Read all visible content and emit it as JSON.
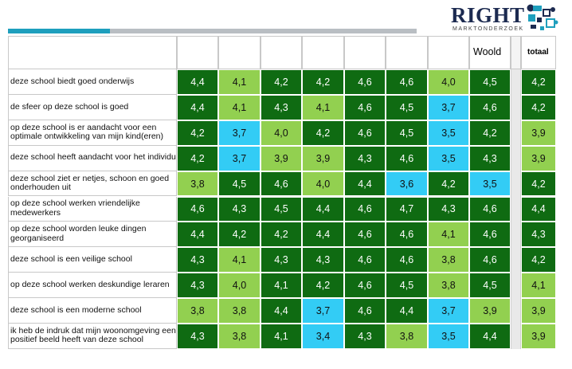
{
  "brand": {
    "name": "RIGHT",
    "subtitle": "MARKTONDERZOEK",
    "colors": {
      "navy": "#1c2a50",
      "teal": "#1e9fbd",
      "grey": "#b9bec3"
    }
  },
  "chart_data": {
    "type": "table",
    "columns": [
      "",
      "",
      "",
      "",
      "",
      "",
      "",
      "Woold",
      "totaal"
    ],
    "rows": [
      {
        "label": "deze school biedt goed onderwijs",
        "values": [
          4.4,
          4.1,
          4.2,
          4.2,
          4.6,
          4.6,
          4.0,
          4.5,
          4.2
        ]
      },
      {
        "label": "de sfeer op deze school is goed",
        "values": [
          4.4,
          4.1,
          4.3,
          4.1,
          4.6,
          4.5,
          3.7,
          4.6,
          4.2
        ]
      },
      {
        "label": "op deze school is er aandacht voor een optimale ontwikkeling van mijn kind(eren)",
        "values": [
          4.2,
          3.7,
          4.0,
          4.2,
          4.6,
          4.5,
          3.5,
          4.2,
          3.9
        ]
      },
      {
        "label": "deze school heeft aandacht voor het individu",
        "values": [
          4.2,
          3.7,
          3.9,
          3.9,
          4.3,
          4.6,
          3.5,
          4.3,
          3.9
        ]
      },
      {
        "label": "deze school ziet er netjes, schoon en goed onderhouden uit",
        "values": [
          3.8,
          4.5,
          4.6,
          4.0,
          4.4,
          3.6,
          4.2,
          3.5,
          4.2
        ]
      },
      {
        "label": "op deze school werken vriendelijke medewerkers",
        "values": [
          4.6,
          4.3,
          4.5,
          4.4,
          4.6,
          4.7,
          4.3,
          4.6,
          4.4
        ]
      },
      {
        "label": "op deze school worden leuke dingen georganiseerd",
        "values": [
          4.4,
          4.2,
          4.2,
          4.4,
          4.6,
          4.6,
          4.1,
          4.6,
          4.3
        ]
      },
      {
        "label": "deze school is een veilige school",
        "values": [
          4.3,
          4.1,
          4.3,
          4.3,
          4.6,
          4.6,
          3.8,
          4.6,
          4.2
        ]
      },
      {
        "label": "op deze school werken deskundige leraren",
        "values": [
          4.3,
          4.0,
          4.1,
          4.2,
          4.6,
          4.5,
          3.8,
          4.5,
          4.1
        ]
      },
      {
        "label": "deze school is een moderne school",
        "values": [
          3.8,
          3.8,
          4.4,
          3.7,
          4.6,
          4.4,
          3.7,
          3.9,
          3.9
        ]
      },
      {
        "label": "ik heb de indruk dat mijn woonomgeving een positief beeld heeft van deze school",
        "values": [
          4.3,
          3.8,
          4.1,
          3.4,
          4.3,
          3.8,
          3.5,
          4.4,
          3.9
        ]
      }
    ],
    "cell_colors": [
      [
        "dark",
        "light",
        "dark",
        "dark",
        "dark",
        "dark",
        "light",
        "dark",
        "dark"
      ],
      [
        "dark",
        "light",
        "dark",
        "light",
        "dark",
        "dark",
        "blue",
        "dark",
        "dark"
      ],
      [
        "dark",
        "blue",
        "light",
        "dark",
        "dark",
        "dark",
        "blue",
        "dark",
        "light"
      ],
      [
        "dark",
        "blue",
        "light",
        "light",
        "dark",
        "dark",
        "blue",
        "dark",
        "light"
      ],
      [
        "light",
        "dark",
        "dark",
        "light",
        "dark",
        "blue",
        "dark",
        "blue",
        "dark"
      ],
      [
        "dark",
        "dark",
        "dark",
        "dark",
        "dark",
        "dark",
        "dark",
        "dark",
        "dark"
      ],
      [
        "dark",
        "dark",
        "dark",
        "dark",
        "dark",
        "dark",
        "light",
        "dark",
        "dark"
      ],
      [
        "dark",
        "light",
        "dark",
        "dark",
        "dark",
        "dark",
        "light",
        "dark",
        "dark"
      ],
      [
        "dark",
        "light",
        "dark",
        "dark",
        "dark",
        "dark",
        "light",
        "dark",
        "light"
      ],
      [
        "light",
        "light",
        "dark",
        "blue",
        "dark",
        "dark",
        "blue",
        "light",
        "light"
      ],
      [
        "dark",
        "light",
        "dark",
        "blue",
        "dark",
        "light",
        "blue",
        "dark",
        "light"
      ]
    ],
    "palette": {
      "dark": "#0f6b12",
      "light": "#92d050",
      "blue": "#33ccf5"
    }
  }
}
